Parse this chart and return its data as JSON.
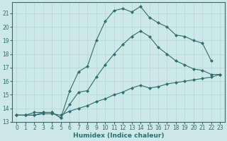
{
  "xlabel": "Humidex (Indice chaleur)",
  "bg_color": "#cce8e8",
  "grid_color": "#b8d8d8",
  "line_color": "#2d6e6e",
  "xlim": [
    -0.5,
    23.5
  ],
  "ylim": [
    13,
    21.8
  ],
  "yticks": [
    13,
    14,
    15,
    16,
    17,
    18,
    19,
    20,
    21
  ],
  "xticks": [
    0,
    1,
    2,
    3,
    4,
    5,
    6,
    7,
    8,
    9,
    10,
    11,
    12,
    13,
    14,
    15,
    16,
    17,
    18,
    19,
    20,
    21,
    22,
    23
  ],
  "line1_x": [
    0,
    1,
    2,
    3,
    4,
    5,
    6,
    7,
    8,
    9,
    10,
    11,
    12,
    13,
    14,
    15,
    16,
    17,
    18,
    19,
    20,
    21,
    22
  ],
  "line1_y": [
    13.5,
    13.5,
    13.5,
    13.7,
    13.7,
    13.3,
    15.3,
    16.7,
    17.1,
    19.0,
    20.4,
    21.2,
    21.35,
    21.1,
    21.5,
    20.7,
    20.3,
    20.0,
    19.4,
    19.3,
    19.0,
    18.8,
    17.5
  ],
  "line2_x": [
    0,
    1,
    2,
    3,
    4,
    5,
    6,
    7,
    8,
    9,
    10,
    11,
    12,
    13,
    14,
    15,
    16,
    17,
    18,
    19,
    20,
    21,
    22,
    23
  ],
  "line2_y": [
    13.5,
    13.5,
    13.7,
    13.7,
    13.7,
    13.3,
    14.3,
    15.2,
    15.3,
    16.3,
    17.2,
    18.0,
    18.7,
    19.3,
    19.7,
    19.3,
    18.5,
    18.0,
    17.5,
    17.2,
    16.9,
    16.8,
    16.5,
    16.5
  ],
  "line3_x": [
    0,
    1,
    2,
    3,
    4,
    5,
    6,
    7,
    8,
    9,
    10,
    11,
    12,
    13,
    14,
    15,
    16,
    17,
    18,
    19,
    20,
    21,
    22,
    23
  ],
  "line3_y": [
    13.5,
    13.5,
    13.5,
    13.6,
    13.6,
    13.5,
    13.8,
    14.0,
    14.2,
    14.5,
    14.7,
    15.0,
    15.2,
    15.5,
    15.7,
    15.5,
    15.6,
    15.8,
    15.9,
    16.0,
    16.1,
    16.2,
    16.3,
    16.5
  ]
}
